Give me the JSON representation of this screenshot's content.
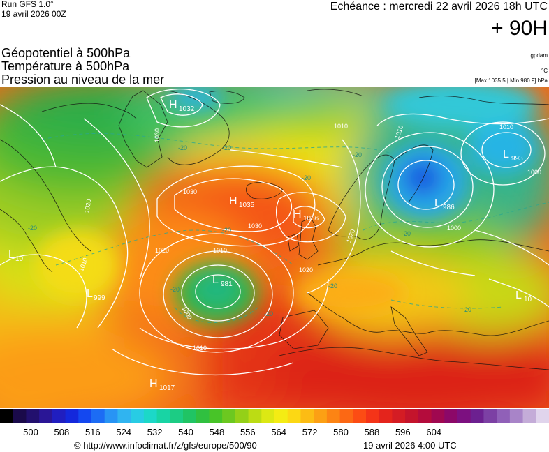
{
  "header": {
    "run": "Run GFS 1.0°",
    "run_date": "19 avril 2026 00Z",
    "validity": "Echéance : mercredi 22 avril 2026 18h UTC",
    "lead_time": "+ 90H",
    "titles": [
      "Géopotentiel à 500hPa",
      "Température à 500hPa",
      "Pression au niveau de la mer"
    ],
    "units": {
      "geopotential": "gpdam",
      "temperature": "°C",
      "pressure_range": "[Max 1035.5 | Min 980.9] hPa"
    }
  },
  "map": {
    "pressure_centers": [
      {
        "type": "H",
        "value": "1032"
      },
      {
        "type": "H",
        "value": "1035"
      },
      {
        "type": "H",
        "value": "1036"
      },
      {
        "type": "L",
        "value": "981"
      },
      {
        "type": "L",
        "value": "999"
      },
      {
        "type": "L",
        "value": "10"
      },
      {
        "type": "H",
        "value": "1017"
      },
      {
        "type": "L",
        "value": "993"
      },
      {
        "type": "L",
        "value": "986"
      },
      {
        "type": "L",
        "value": "10"
      }
    ],
    "isobar_labels": [
      "1030",
      "1030",
      "1030",
      "1020",
      "1020",
      "1020",
      "1020",
      "1010",
      "1010",
      "1010",
      "1010",
      "1010",
      "1010",
      "1000",
      "1000",
      "1000"
    ],
    "temperature_labels": [
      "-20",
      "-20",
      "-20",
      "-20",
      "-20",
      "-20",
      "-20",
      "-20",
      "-20",
      "-20",
      "-20"
    ]
  },
  "legend": {
    "colors": [
      "#000000",
      "#1a0a4a",
      "#22106e",
      "#2a1696",
      "#201ec0",
      "#1428dc",
      "#1448f0",
      "#1c6cf4",
      "#2894f4",
      "#30b4f0",
      "#28cce4",
      "#1cd8c8",
      "#18d4a4",
      "#1ccc84",
      "#20c464",
      "#30c040",
      "#48c428",
      "#6cc820",
      "#94d018",
      "#bcdc14",
      "#dce814",
      "#f4ec14",
      "#fcd814",
      "#fcbc14",
      "#fca014",
      "#fc8414",
      "#fc6814",
      "#fc4c14",
      "#f43418",
      "#e4241c",
      "#d41c24",
      "#c4142c",
      "#b40c3c",
      "#a00850",
      "#8c0868",
      "#7c1080",
      "#6c2090",
      "#7c40a4",
      "#9060b8",
      "#a884c8",
      "#c4acd8",
      "#e0d4ec"
    ],
    "ticks": [
      "500",
      "508",
      "516",
      "524",
      "532",
      "540",
      "548",
      "556",
      "564",
      "572",
      "580",
      "588",
      "596",
      "604"
    ]
  },
  "footer": {
    "source": "© http://www.infoclimat.fr/z/gfs/europe/500/90",
    "generated": "19 avril 2026  4:00 UTC"
  }
}
